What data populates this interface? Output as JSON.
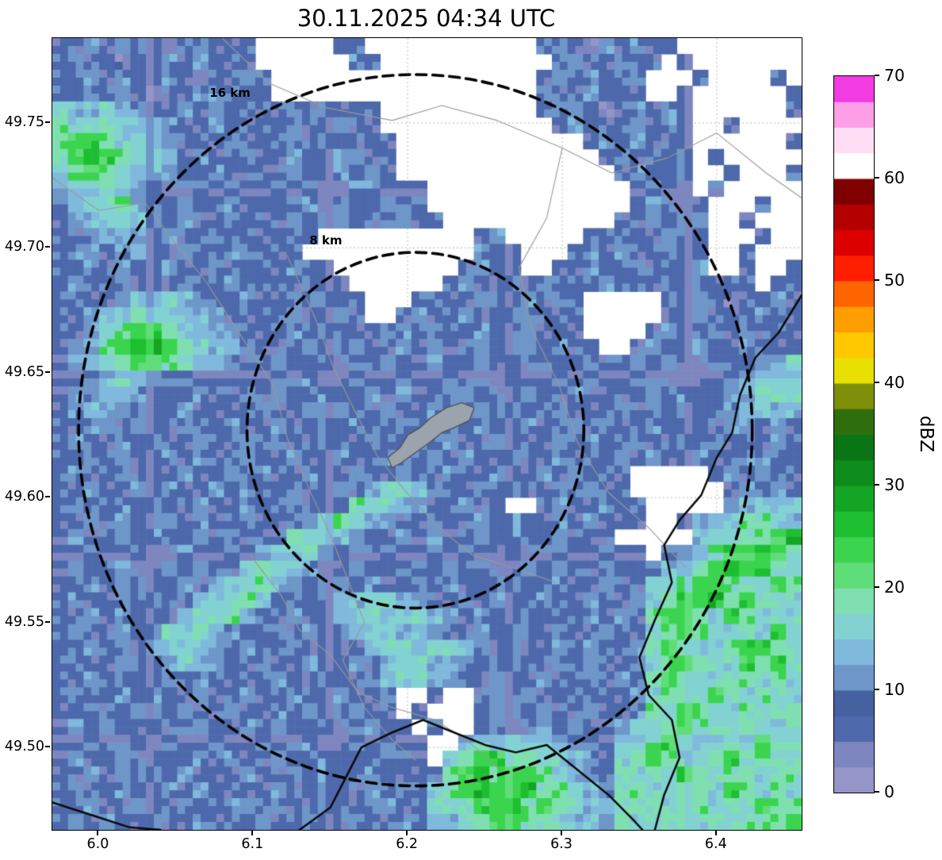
{
  "title": "30.11.2025 04:34 UTC",
  "axes": {
    "x_ticks": [
      6.0,
      6.1,
      6.2,
      6.3,
      6.4
    ],
    "x_tick_labels": [
      "6.0",
      "6.1",
      "6.2",
      "6.3",
      "6.4"
    ],
    "y_ticks": [
      49.5,
      49.55,
      49.6,
      49.65,
      49.7,
      49.75
    ],
    "y_tick_labels": [
      "49.50",
      "49.55",
      "49.60",
      "49.65",
      "49.70",
      "49.75"
    ]
  },
  "colorbar": {
    "label": "dBZ",
    "ticks": [
      0,
      10,
      20,
      30,
      40,
      50,
      60,
      70
    ],
    "tick_labels": [
      "0",
      "10",
      "20",
      "30",
      "40",
      "50",
      "60",
      "70"
    ]
  },
  "range_rings": {
    "center": [
      6.205,
      49.627
    ],
    "rings": [
      {
        "label": "8 km",
        "radius_km": 8,
        "dlon": 0.109,
        "dlat": 0.0712,
        "label_pos": [
          6.147,
          49.703
        ]
      },
      {
        "label": "16 km",
        "radius_km": 16,
        "dlon": 0.218,
        "dlat": 0.1424,
        "label_pos": [
          6.085,
          49.762
        ]
      }
    ]
  },
  "chart_data": {
    "type": "heatmap",
    "title": "30.11.2025 04:34 UTC",
    "xlabel": "",
    "ylabel": "",
    "units": "dBZ",
    "xlim": [
      5.97,
      6.455
    ],
    "ylim": [
      49.467,
      49.784
    ],
    "colorbar_label": "dBZ",
    "colorbar_range": [
      0,
      70
    ],
    "colorbar_bin_size": 2.5,
    "no_echo_color": "#ffffff",
    "colormap": [
      {
        "upto": 2.5,
        "color": "#9595c8"
      },
      {
        "upto": 5,
        "color": "#7e86c0"
      },
      {
        "upto": 7.5,
        "color": "#4d69ab"
      },
      {
        "upto": 10,
        "color": "#45619f"
      },
      {
        "upto": 12.5,
        "color": "#6e96c9"
      },
      {
        "upto": 15,
        "color": "#7fb9dc"
      },
      {
        "upto": 17.5,
        "color": "#82d2d2"
      },
      {
        "upto": 20,
        "color": "#7fdfb0"
      },
      {
        "upto": 22.5,
        "color": "#5fdd78"
      },
      {
        "upto": 25,
        "color": "#3bd44e"
      },
      {
        "upto": 27.5,
        "color": "#1dbe30"
      },
      {
        "upto": 30,
        "color": "#13a523"
      },
      {
        "upto": 32.5,
        "color": "#0e8c1b"
      },
      {
        "upto": 35,
        "color": "#0a7514"
      },
      {
        "upto": 37.5,
        "color": "#2e6e0c"
      },
      {
        "upto": 40,
        "color": "#7e8f0a"
      },
      {
        "upto": 42.5,
        "color": "#e8e000"
      },
      {
        "upto": 45,
        "color": "#ffc800"
      },
      {
        "upto": 47.5,
        "color": "#ff9e00"
      },
      {
        "upto": 50,
        "color": "#ff6400"
      },
      {
        "upto": 52.5,
        "color": "#ff1e00"
      },
      {
        "upto": 55,
        "color": "#dc0000"
      },
      {
        "upto": 57.5,
        "color": "#b40000"
      },
      {
        "upto": 60,
        "color": "#800000"
      },
      {
        "upto": 62.5,
        "color": "#ffffff"
      },
      {
        "upto": 65,
        "color": "#ffddf5"
      },
      {
        "upto": 67.5,
        "color": "#ff9fe8"
      },
      {
        "upto": 70,
        "color": "#f23be0"
      }
    ],
    "value_map": {
      ".": null,
      "a": 1,
      "b": 4,
      "c": 7,
      "d": 10,
      "e": 13,
      "f": 16,
      "g": 19,
      "h": 23,
      "i": 26
    },
    "grid_note": "Approximate radar reflectivity (dBZ) sampled on a 48x50 lon/lat grid over xlim/ylim; '.' = no echo (white).",
    "grid_cols": 48,
    "grid_rows": 50,
    "grid": [
      "ccdcdccbcdccc.....cc...........cdcbdcdcc........",
      "cdccbccdcdccc......dc...........cdccdcc.c.......",
      "ccdcdccdcbccdc.................cdcdccd...c....c.",
      "ccdcdcbccddccc.................dccdccc..c......c",
      "feefedccdcdccccdcdccc..........cddcacdcdc......c",
      "gffgfeedccdccccdccdcc...........cdcccdcdc..c....",
      "ghhgffedcccdcccdcdcccc............cdcdccc......c",
      "ghihgfeecdccdccdccddcc.............cdcccd.c.....",
      "fghgfeedccdccccdccdcdc..............cdccd..c...c",
      "effgfedccdcdccdcdccddccc.............cdcc.c.....",
      "deffgedcdccdccccdcdccdcd.............cdccc...c..",
      "cdeffedcdccdcccdccdccddcc...........ccdccd..c...",
      "ccdeedcdccdccccdc..........cd.....ccdccdcc...c..",
      "cddcdeccdccddccc...........dcc...cdcdccdcc..c...",
      "ccdcdccdccdccccdcc........cdcc..ccdccdcccd..c..c",
      "cdccdcccdccdccccdcc......cdccdcdcccdcccdcdccc.cc",
      "cdccdeefedccdccdcdcc...cdccdccdcdc.....ccdcbccdc",
      "ccdefgffeedccccdccdc..cdccdccddccc.....ccdcccdcc",
      "ccdfghhgfeedcccdcdcccddcdccdccdccc....cdccdcdccc",
      "cdeghiihgfeedcccdccdccdcdccdccdcdcc..cdccdccdccc",
      "cdefghhgfeedccdccdcccdccdccdcdccccdccdcdcccccdef",
      "ccdeffeddcccccdcdccdccdccdcccdccdcdccdcccccdefff",
      "cddeedcccdccdcdccdccdcdccddcccdccdccccdcdccdefgf",
      "cdeedcccdccccdccdcdccdccdccdcdccdcccdcdccccdefee",
      "ccddcdccdccdccdccdcdccdcdccdccdccdcdccdccccddcdc",
      "cdccdcdccdccdcdccdccdccdcdccdcccdcdccdccdcdcccdc",
      "ccdcdccdcdccdccdccdccdccdcdccdccdcccdcdccdccddcc",
      "cdccdcccdccdcdccdccdccdccdccdccdcdccc.....cdcdcc",
      "ccdccdcdccdcdccdccdceffedccdcdccdcdcc......cdcdc",
      "cdccdcdccdccdccdcccgffedccdcc..cdccdcc.....defef",
      "ccdcdccdcdccdcccdfgfedccdccdcdccdcdccc..cdefggfe",
      "cdccdcdccdcdcccgffedccdcdccdcdccdccc.....effgghi",
      "ccdccdccdccdceffgedccdccdcdccdccdccdcc.defghhihg",
      "cdccdccdcdccfgfedccdcccdcdccccdcdccdcccefghihhgf",
      "ccdcdcccdceffgedccdcdccdcdcccdccdccdccffghhggfhg",
      "cdccdcdcceffgfcdcceeffedccdcdccdccdccdfghhighgff",
      "ccdcdccceffgeccdcceffeffedcdccdcccdcdcghhgfhgfff",
      "cdccdcdffgedccdcdcceffeedccdcdccdccdccfghgffgfhf",
      "ccdcdceffedcdccdcccceffeffedcdccdcdccdghgffghhgf",
      "cdccdccdfedccdccdccdceffeedccdccdcdccdfghgffhghg",
      "ccdcdccdcdccccdccdccdeffedccdccdccdcdcghgffggfgf",
      "cdccdcdccdccdccdccdccd..c..cdcdccdcccdfggfhgfgff",
      "ccdccdccdccdccdcdccdcc.c...cdccdccdccdgfhgffgfgg",
      "cdcdccdccdccdcdccdccdcc.c..cdccdcdccdffghgffgfff",
      "ccdccdcdccdccdccdccdcdcc..effgffeddcffghgffgfhgg",
      "cdccdccccdcdccdccdcccdcc.fghhggffedcfghgffghgggf",
      "ccdcdcdcdcccdccdcdccdccccghighhgfedcgfgfhgfggfgg",
      "cdccdccdcdccccdccdccdcdcfghihhiggfedggffggfhgfgf",
      "ccdccdccdccddcdccdccddccffghhighgfeefggfggfgfhgg",
      "cdcdccdccdcccdccdccdccdceefghhggfeedgffggfgfgggh"
    ],
    "map_layers": {
      "admin_lines_color": "#9a9a9a",
      "border_lines_color": "#0a0a0a",
      "admin_lines": [
        [
          [
            5.97,
            49.728
          ],
          [
            6.0,
            49.715
          ],
          [
            6.03,
            49.718
          ],
          [
            6.052,
            49.7
          ],
          [
            6.07,
            49.686
          ],
          [
            6.095,
            49.662
          ],
          [
            6.113,
            49.645
          ],
          [
            6.122,
            49.624
          ],
          [
            6.138,
            49.601
          ],
          [
            6.15,
            49.585
          ],
          [
            6.162,
            49.566
          ],
          [
            6.172,
            49.55
          ],
          [
            6.158,
            49.535
          ],
          [
            6.172,
            49.516
          ],
          [
            6.19,
            49.503
          ],
          [
            6.205,
            49.495
          ]
        ],
        [
          [
            6.08,
            49.784
          ],
          [
            6.11,
            49.766
          ],
          [
            6.148,
            49.756
          ],
          [
            6.19,
            49.751
          ],
          [
            6.222,
            49.757
          ],
          [
            6.258,
            49.751
          ],
          [
            6.3,
            49.74
          ],
          [
            6.332,
            49.73
          ],
          [
            6.368,
            49.736
          ],
          [
            6.4,
            49.746
          ],
          [
            6.432,
            49.73
          ],
          [
            6.455,
            49.72
          ]
        ],
        [
          [
            6.3,
            49.74
          ],
          [
            6.29,
            49.712
          ],
          [
            6.272,
            49.692
          ],
          [
            6.28,
            49.668
          ],
          [
            6.298,
            49.645
          ],
          [
            6.31,
            49.622
          ],
          [
            6.33,
            49.602
          ],
          [
            6.356,
            49.588
          ],
          [
            6.38,
            49.572
          ]
        ],
        [
          [
            6.122,
            49.697
          ],
          [
            6.14,
            49.672
          ],
          [
            6.152,
            49.652
          ],
          [
            6.168,
            49.632
          ],
          [
            6.18,
            49.617
          ],
          [
            6.198,
            49.603
          ],
          [
            6.22,
            49.588
          ],
          [
            6.242,
            49.577
          ],
          [
            6.268,
            49.572
          ],
          [
            6.296,
            49.566
          ]
        ],
        [
          [
            6.098,
            49.577
          ],
          [
            6.118,
            49.561
          ],
          [
            6.13,
            49.547
          ],
          [
            6.15,
            49.537
          ],
          [
            6.168,
            49.522
          ],
          [
            6.19,
            49.516
          ],
          [
            6.218,
            49.511
          ],
          [
            6.24,
            49.502
          ],
          [
            6.258,
            49.492
          ]
        ]
      ],
      "border_lines": [
        [
          [
            6.455,
            49.681
          ],
          [
            6.44,
            49.666
          ],
          [
            6.425,
            49.656
          ],
          [
            6.415,
            49.641
          ],
          [
            6.41,
            49.626
          ],
          [
            6.4,
            49.616
          ],
          [
            6.39,
            49.601
          ],
          [
            6.376,
            49.591
          ],
          [
            6.366,
            49.581
          ],
          [
            6.371,
            49.566
          ],
          [
            6.36,
            49.551
          ],
          [
            6.35,
            49.536
          ],
          [
            6.356,
            49.521
          ],
          [
            6.371,
            49.511
          ],
          [
            6.376,
            49.496
          ],
          [
            6.366,
            49.481
          ],
          [
            6.36,
            49.467
          ]
        ],
        [
          [
            6.13,
            49.467
          ],
          [
            6.15,
            49.476
          ],
          [
            6.16,
            49.488
          ],
          [
            6.17,
            49.5
          ],
          [
            6.19,
            49.506
          ],
          [
            6.21,
            49.511
          ],
          [
            6.23,
            49.506
          ],
          [
            6.25,
            49.501
          ],
          [
            6.27,
            49.498
          ],
          [
            6.29,
            49.501
          ],
          [
            6.31,
            49.491
          ],
          [
            6.33,
            49.481
          ],
          [
            6.346,
            49.471
          ],
          [
            6.352,
            49.467
          ]
        ],
        [
          [
            5.97,
            49.478
          ],
          [
            6.0,
            49.472
          ],
          [
            6.02,
            49.468
          ],
          [
            6.04,
            49.467
          ]
        ]
      ],
      "urban_shape": {
        "fill": "#9ba3ad",
        "stroke": "#4a4f55",
        "points": [
          [
            6.187,
            49.616
          ],
          [
            6.195,
            49.62
          ],
          [
            6.2,
            49.625
          ],
          [
            6.208,
            49.628
          ],
          [
            6.215,
            49.632
          ],
          [
            6.225,
            49.636
          ],
          [
            6.235,
            49.638
          ],
          [
            6.243,
            49.636
          ],
          [
            6.24,
            49.631
          ],
          [
            6.23,
            49.628
          ],
          [
            6.222,
            49.626
          ],
          [
            6.214,
            49.622
          ],
          [
            6.205,
            49.618
          ],
          [
            6.196,
            49.614
          ],
          [
            6.19,
            49.612
          ]
        ]
      }
    }
  }
}
